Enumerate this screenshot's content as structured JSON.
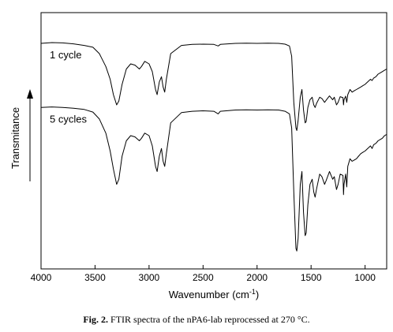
{
  "chart_data": {
    "type": "line",
    "title": "",
    "xlabel": "Wavenumber (cm⁻¹)",
    "xlabel_text": "Wavenumber (cm",
    "xlabel_sup": "-1",
    "xlabel_close": ")",
    "ylabel": "Transmitance",
    "xlim": [
      4000,
      800
    ],
    "x_reversed": true,
    "y_ticks_shown": false,
    "grid": false,
    "x_ticks": [
      4000,
      3500,
      3000,
      2500,
      2000,
      1500,
      1000
    ],
    "x_tick_labels": [
      "4000",
      "3500",
      "3000",
      "2500",
      "2000",
      "1500",
      "1000"
    ],
    "y_units": "relative transmittance (arbitrary, 0 = bottom of plot, 1 = top)",
    "series": [
      {
        "name": "1 cycle",
        "label_position": "upper",
        "points": [
          [
            4000,
            0.88
          ],
          [
            3900,
            0.883
          ],
          [
            3800,
            0.882
          ],
          [
            3700,
            0.878
          ],
          [
            3600,
            0.872
          ],
          [
            3520,
            0.865
          ],
          [
            3460,
            0.84
          ],
          [
            3400,
            0.79
          ],
          [
            3360,
            0.74
          ],
          [
            3330,
            0.68
          ],
          [
            3300,
            0.64
          ],
          [
            3280,
            0.655
          ],
          [
            3250,
            0.72
          ],
          [
            3210,
            0.78
          ],
          [
            3170,
            0.8
          ],
          [
            3130,
            0.795
          ],
          [
            3090,
            0.78
          ],
          [
            3070,
            0.79
          ],
          [
            3040,
            0.81
          ],
          [
            3000,
            0.8
          ],
          [
            2970,
            0.77
          ],
          [
            2940,
            0.7
          ],
          [
            2925,
            0.68
          ],
          [
            2905,
            0.73
          ],
          [
            2885,
            0.75
          ],
          [
            2870,
            0.71
          ],
          [
            2855,
            0.69
          ],
          [
            2840,
            0.74
          ],
          [
            2800,
            0.84
          ],
          [
            2700,
            0.872
          ],
          [
            2600,
            0.876
          ],
          [
            2500,
            0.877
          ],
          [
            2400,
            0.876
          ],
          [
            2360,
            0.87
          ],
          [
            2340,
            0.876
          ],
          [
            2200,
            0.88
          ],
          [
            2100,
            0.881
          ],
          [
            2000,
            0.88
          ],
          [
            1900,
            0.881
          ],
          [
            1800,
            0.88
          ],
          [
            1740,
            0.877
          ],
          [
            1700,
            0.87
          ],
          [
            1680,
            0.83
          ],
          [
            1660,
            0.65
          ],
          [
            1640,
            0.55
          ],
          [
            1632,
            0.54
          ],
          [
            1620,
            0.58
          ],
          [
            1600,
            0.67
          ],
          [
            1585,
            0.7
          ],
          [
            1570,
            0.62
          ],
          [
            1555,
            0.57
          ],
          [
            1545,
            0.575
          ],
          [
            1530,
            0.63
          ],
          [
            1510,
            0.66
          ],
          [
            1490,
            0.67
          ],
          [
            1475,
            0.64
          ],
          [
            1463,
            0.63
          ],
          [
            1450,
            0.645
          ],
          [
            1420,
            0.67
          ],
          [
            1400,
            0.665
          ],
          [
            1375,
            0.65
          ],
          [
            1360,
            0.658
          ],
          [
            1330,
            0.675
          ],
          [
            1300,
            0.66
          ],
          [
            1285,
            0.67
          ],
          [
            1265,
            0.64
          ],
          [
            1250,
            0.65
          ],
          [
            1230,
            0.672
          ],
          [
            1205,
            0.668
          ],
          [
            1200,
            0.64
          ],
          [
            1195,
            0.66
          ],
          [
            1180,
            0.674
          ],
          [
            1170,
            0.65
          ],
          [
            1160,
            0.68
          ],
          [
            1140,
            0.7
          ],
          [
            1120,
            0.69
          ],
          [
            1100,
            0.695
          ],
          [
            1080,
            0.7
          ],
          [
            1060,
            0.705
          ],
          [
            1040,
            0.71
          ],
          [
            1020,
            0.715
          ],
          [
            1000,
            0.72
          ],
          [
            975,
            0.73
          ],
          [
            950,
            0.74
          ],
          [
            935,
            0.735
          ],
          [
            920,
            0.745
          ],
          [
            900,
            0.75
          ],
          [
            880,
            0.76
          ],
          [
            860,
            0.765
          ],
          [
            840,
            0.77
          ],
          [
            820,
            0.775
          ],
          [
            800,
            0.78
          ]
        ]
      },
      {
        "name": "5 cycles",
        "label_position": "lower",
        "points": [
          [
            4000,
            0.63
          ],
          [
            3900,
            0.632
          ],
          [
            3800,
            0.63
          ],
          [
            3700,
            0.627
          ],
          [
            3600,
            0.622
          ],
          [
            3520,
            0.612
          ],
          [
            3460,
            0.585
          ],
          [
            3400,
            0.53
          ],
          [
            3360,
            0.46
          ],
          [
            3330,
            0.39
          ],
          [
            3300,
            0.33
          ],
          [
            3280,
            0.35
          ],
          [
            3250,
            0.44
          ],
          [
            3210,
            0.5
          ],
          [
            3170,
            0.52
          ],
          [
            3130,
            0.515
          ],
          [
            3090,
            0.5
          ],
          [
            3070,
            0.51
          ],
          [
            3040,
            0.53
          ],
          [
            3000,
            0.52
          ],
          [
            2970,
            0.48
          ],
          [
            2940,
            0.4
          ],
          [
            2925,
            0.38
          ],
          [
            2905,
            0.44
          ],
          [
            2885,
            0.47
          ],
          [
            2870,
            0.42
          ],
          [
            2855,
            0.4
          ],
          [
            2840,
            0.45
          ],
          [
            2800,
            0.57
          ],
          [
            2700,
            0.61
          ],
          [
            2600,
            0.615
          ],
          [
            2500,
            0.617
          ],
          [
            2400,
            0.615
          ],
          [
            2360,
            0.605
          ],
          [
            2340,
            0.615
          ],
          [
            2200,
            0.62
          ],
          [
            2100,
            0.621
          ],
          [
            2000,
            0.62
          ],
          [
            1900,
            0.621
          ],
          [
            1800,
            0.62
          ],
          [
            1740,
            0.615
          ],
          [
            1700,
            0.605
          ],
          [
            1680,
            0.55
          ],
          [
            1660,
            0.3
          ],
          [
            1640,
            0.08
          ],
          [
            1632,
            0.07
          ],
          [
            1620,
            0.12
          ],
          [
            1600,
            0.33
          ],
          [
            1585,
            0.38
          ],
          [
            1570,
            0.22
          ],
          [
            1555,
            0.13
          ],
          [
            1545,
            0.14
          ],
          [
            1530,
            0.25
          ],
          [
            1510,
            0.33
          ],
          [
            1490,
            0.35
          ],
          [
            1475,
            0.3
          ],
          [
            1463,
            0.28
          ],
          [
            1450,
            0.31
          ],
          [
            1420,
            0.37
          ],
          [
            1400,
            0.36
          ],
          [
            1375,
            0.33
          ],
          [
            1360,
            0.345
          ],
          [
            1330,
            0.38
          ],
          [
            1300,
            0.35
          ],
          [
            1285,
            0.36
          ],
          [
            1265,
            0.31
          ],
          [
            1250,
            0.33
          ],
          [
            1230,
            0.37
          ],
          [
            1205,
            0.365
          ],
          [
            1200,
            0.29
          ],
          [
            1195,
            0.33
          ],
          [
            1180,
            0.37
          ],
          [
            1170,
            0.32
          ],
          [
            1160,
            0.4
          ],
          [
            1140,
            0.43
          ],
          [
            1120,
            0.42
          ],
          [
            1100,
            0.425
          ],
          [
            1080,
            0.43
          ],
          [
            1060,
            0.44
          ],
          [
            1040,
            0.45
          ],
          [
            1020,
            0.455
          ],
          [
            1000,
            0.46
          ],
          [
            975,
            0.47
          ],
          [
            950,
            0.48
          ],
          [
            935,
            0.47
          ],
          [
            920,
            0.485
          ],
          [
            900,
            0.49
          ],
          [
            880,
            0.5
          ],
          [
            860,
            0.505
          ],
          [
            840,
            0.51
          ],
          [
            820,
            0.52
          ],
          [
            800,
            0.525
          ]
        ]
      }
    ]
  },
  "caption": {
    "label": "Fig. 2.",
    "text": " FTIR spectra of the nPA6-lab reprocessed at 270 °C."
  }
}
